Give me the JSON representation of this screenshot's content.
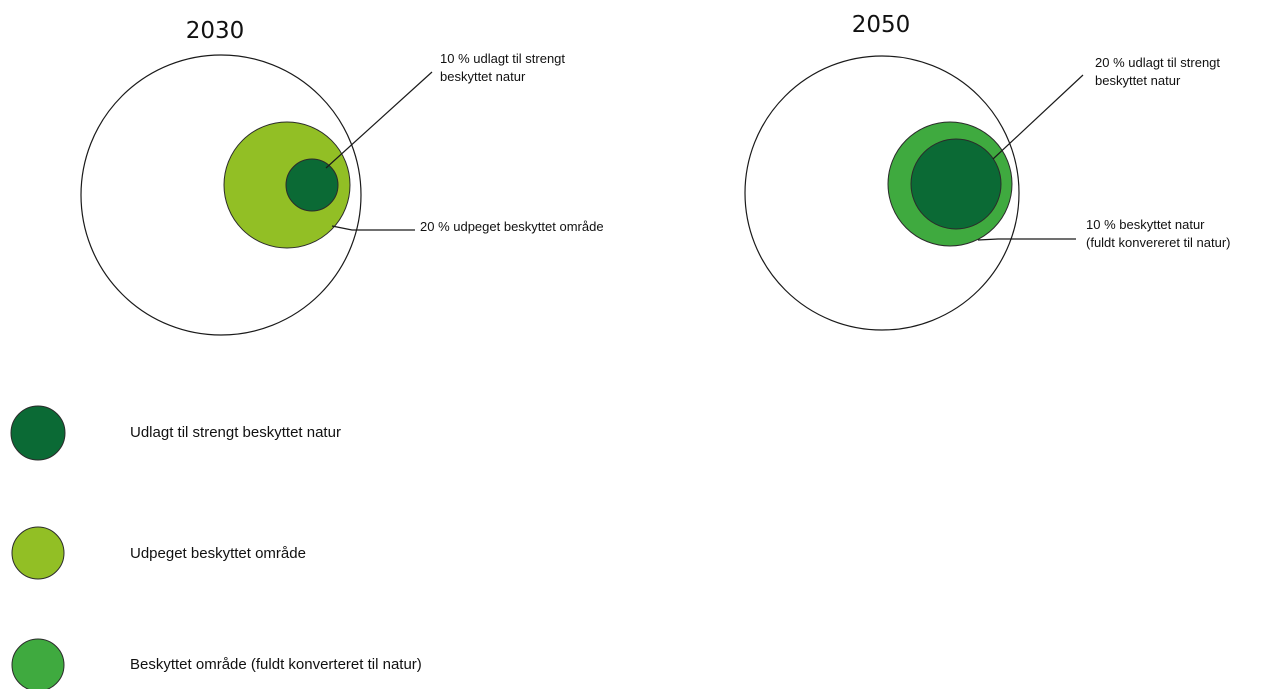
{
  "colors": {
    "strict_nature": "#0b6a35",
    "designated_area": "#92bf25",
    "converted_area": "#3faa3f",
    "outline": "#1a1a1a",
    "background": "#ffffff"
  },
  "panels": {
    "p2030": {
      "title": "2030",
      "inner_callout": {
        "line1": "10 % udlagt til strengt",
        "line2": "beskyttet natur"
      },
      "middle_callout": {
        "line1": "20 % udpeget beskyttet område"
      }
    },
    "p2050": {
      "title": "2050",
      "inner_callout": {
        "line1": "20 % udlagt til strengt",
        "line2": "beskyttet natur"
      },
      "middle_callout": {
        "line1": "10 % beskyttet natur",
        "line2": "(fuldt konvereret til natur)"
      }
    }
  },
  "legend": {
    "items": [
      {
        "key": "strict_nature",
        "label": "Udlagt til strengt beskyttet natur",
        "color": "#0b6a35"
      },
      {
        "key": "designated_area",
        "label": "Udpeget beskyttet område",
        "color": "#92bf25"
      },
      {
        "key": "converted_area",
        "label": "Beskyttet område (fuldt konverteret til natur)",
        "color": "#3faa3f"
      }
    ]
  }
}
